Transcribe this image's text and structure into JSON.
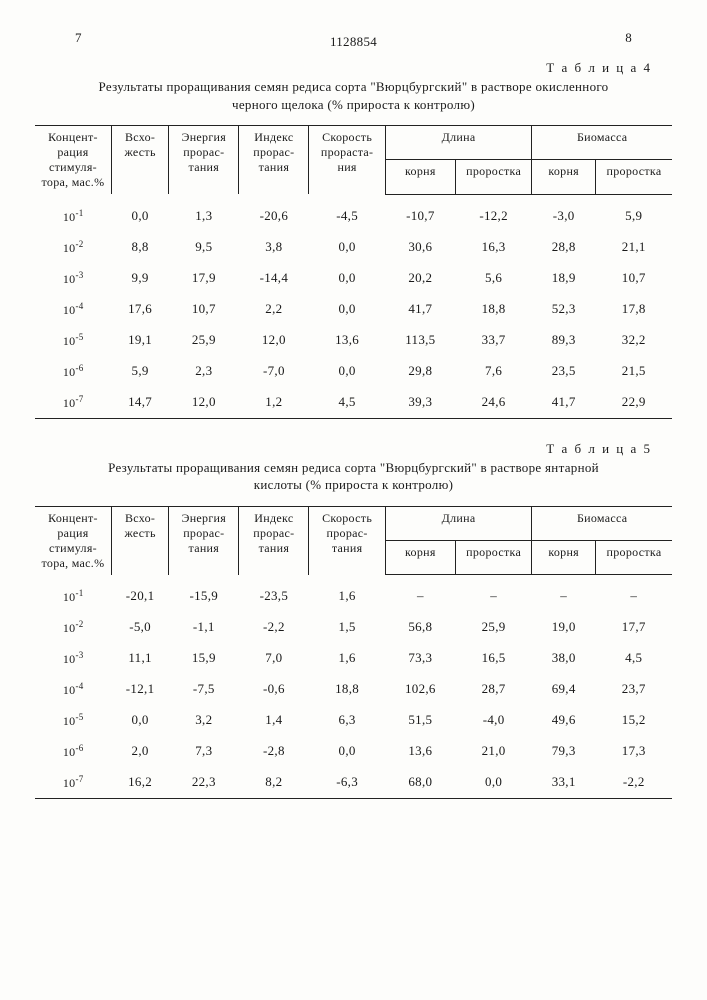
{
  "page_left": "7",
  "doc_id": "1128854",
  "page_right": "8",
  "table4": {
    "label": "Т а б л и ц а 4",
    "caption": "Результаты проращивания семян редиса сорта \"Вюрцбургский\" в растворе окисленного черного щелока (% прироста к контролю)",
    "headers": {
      "c1": "Концент-рация стимуля-тора, мас.%",
      "c2": "Всхо-жесть",
      "c3": "Энергия прорас-тания",
      "c4": "Индекс прорас-тания",
      "c5": "Скорость прораста-ния",
      "g1": "Длина",
      "g2": "Биомасса",
      "s1": "корня",
      "s2": "проростка",
      "s3": "корня",
      "s4": "проростка"
    },
    "rows": [
      {
        "exp": "-1",
        "v": [
          "0,0",
          "1,3",
          "-20,6",
          "-4,5",
          "-10,7",
          "-12,2",
          "-3,0",
          "5,9"
        ]
      },
      {
        "exp": "-2",
        "v": [
          "8,8",
          "9,5",
          "3,8",
          "0,0",
          "30,6",
          "16,3",
          "28,8",
          "21,1"
        ]
      },
      {
        "exp": "-3",
        "v": [
          "9,9",
          "17,9",
          "-14,4",
          "0,0",
          "20,2",
          "5,6",
          "18,9",
          "10,7"
        ]
      },
      {
        "exp": "-4",
        "v": [
          "17,6",
          "10,7",
          "2,2",
          "0,0",
          "41,7",
          "18,8",
          "52,3",
          "17,8"
        ]
      },
      {
        "exp": "-5",
        "v": [
          "19,1",
          "25,9",
          "12,0",
          "13,6",
          "113,5",
          "33,7",
          "89,3",
          "32,2"
        ]
      },
      {
        "exp": "-6",
        "v": [
          "5,9",
          "2,3",
          "-7,0",
          "0,0",
          "29,8",
          "7,6",
          "23,5",
          "21,5"
        ]
      },
      {
        "exp": "-7",
        "v": [
          "14,7",
          "12,0",
          "1,2",
          "4,5",
          "39,3",
          "24,6",
          "41,7",
          "22,9"
        ]
      }
    ]
  },
  "table5": {
    "label": "Т а б л и ц а 5",
    "caption": "Результаты проращивания семян редиса сорта \"Вюрцбургский\" в растворе янтарной кислоты (% прироста к контролю)",
    "headers": {
      "c1": "Концент-рация стимуля-тора, мас.%",
      "c2": "Всхо-жесть",
      "c3": "Энергия прорас-тания",
      "c4": "Индекс прорас-тания",
      "c5": "Скорость прорас-тания",
      "g1": "Длина",
      "g2": "Биомасса",
      "s1": "корня",
      "s2": "проростка",
      "s3": "корня",
      "s4": "проростка"
    },
    "rows": [
      {
        "exp": "-1",
        "v": [
          "-20,1",
          "-15,9",
          "-23,5",
          "1,6",
          "–",
          "–",
          "–",
          "–"
        ]
      },
      {
        "exp": "-2",
        "v": [
          "-5,0",
          "-1,1",
          "-2,2",
          "1,5",
          "56,8",
          "25,9",
          "19,0",
          "17,7"
        ]
      },
      {
        "exp": "-3",
        "v": [
          "11,1",
          "15,9",
          "7,0",
          "1,6",
          "73,3",
          "16,5",
          "38,0",
          "4,5"
        ]
      },
      {
        "exp": "-4",
        "v": [
          "-12,1",
          "-7,5",
          "-0,6",
          "18,8",
          "102,6",
          "28,7",
          "69,4",
          "23,7"
        ]
      },
      {
        "exp": "-5",
        "v": [
          "0,0",
          "3,2",
          "1,4",
          "6,3",
          "51,5",
          "-4,0",
          "49,6",
          "15,2"
        ]
      },
      {
        "exp": "-6",
        "v": [
          "2,0",
          "7,3",
          "-2,8",
          "0,0",
          "13,6",
          "21,0",
          "79,3",
          "17,3"
        ]
      },
      {
        "exp": "-7",
        "v": [
          "16,2",
          "22,3",
          "8,2",
          "-6,3",
          "68,0",
          "0,0",
          "33,1",
          "-2,2"
        ]
      }
    ]
  }
}
